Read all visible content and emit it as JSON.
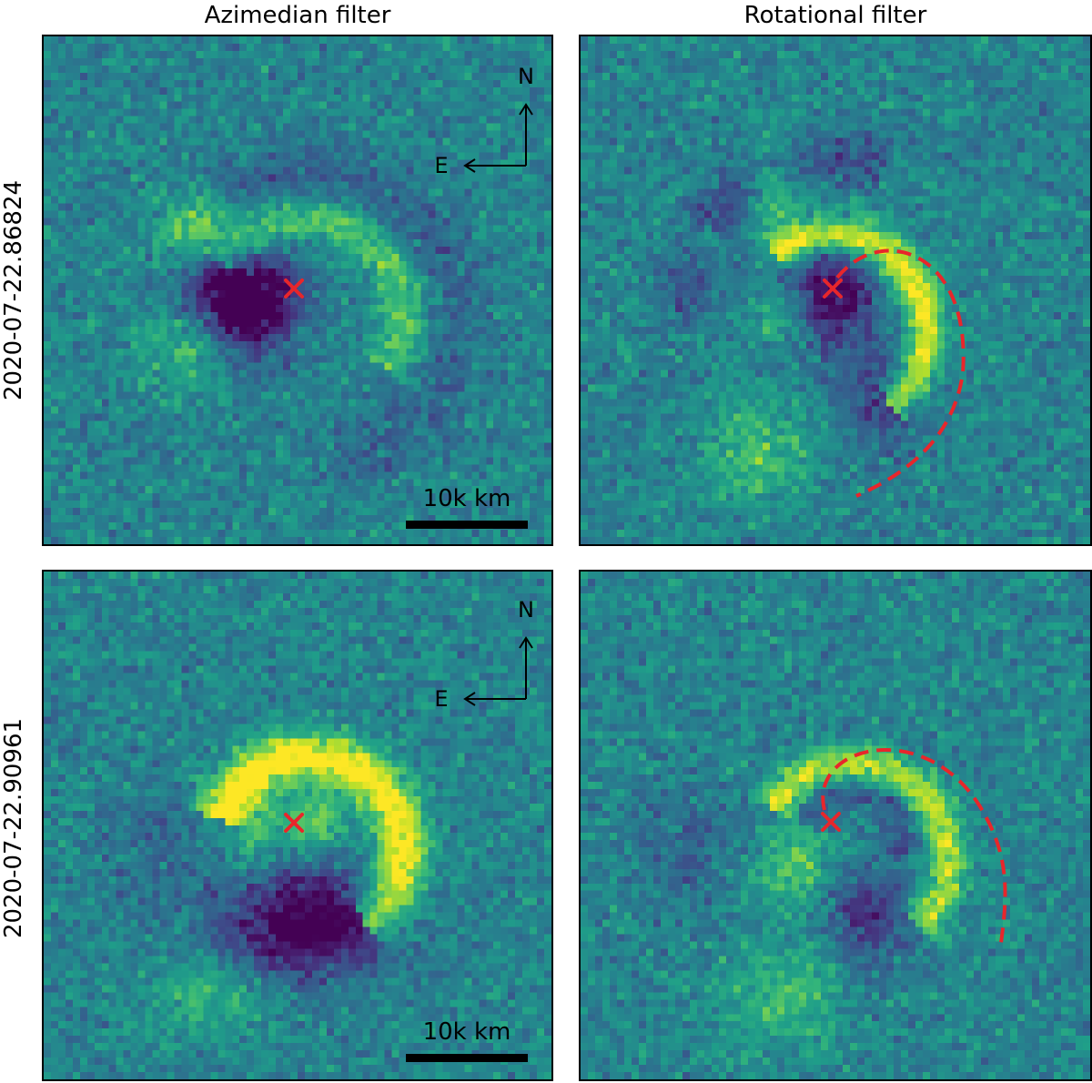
{
  "columns": [
    "Azimedian filter",
    "Rotational filter"
  ],
  "rows": [
    "2020-07-22.86824",
    "2020-07-22.90961"
  ],
  "compass": {
    "north": "N",
    "east": "E"
  },
  "scale_bar": {
    "label": "10k km"
  },
  "colors": {
    "colormap": "viridis",
    "marker": "#e8262b",
    "dashed_curve": "#e8262b",
    "annotation": "#000000"
  },
  "panels": [
    {
      "row": 0,
      "col": 0,
      "filter": "Azimedian filter",
      "marker": "x",
      "compass": true,
      "scale_bar": true,
      "dashed_arc": false
    },
    {
      "row": 0,
      "col": 1,
      "filter": "Rotational filter",
      "marker": "x",
      "compass": false,
      "scale_bar": false,
      "dashed_arc": true
    },
    {
      "row": 1,
      "col": 0,
      "filter": "Azimedian filter",
      "marker": "x",
      "compass": true,
      "scale_bar": true,
      "dashed_arc": false
    },
    {
      "row": 1,
      "col": 1,
      "filter": "Rotational filter",
      "marker": "x",
      "compass": false,
      "scale_bar": false,
      "dashed_arc": true
    }
  ]
}
